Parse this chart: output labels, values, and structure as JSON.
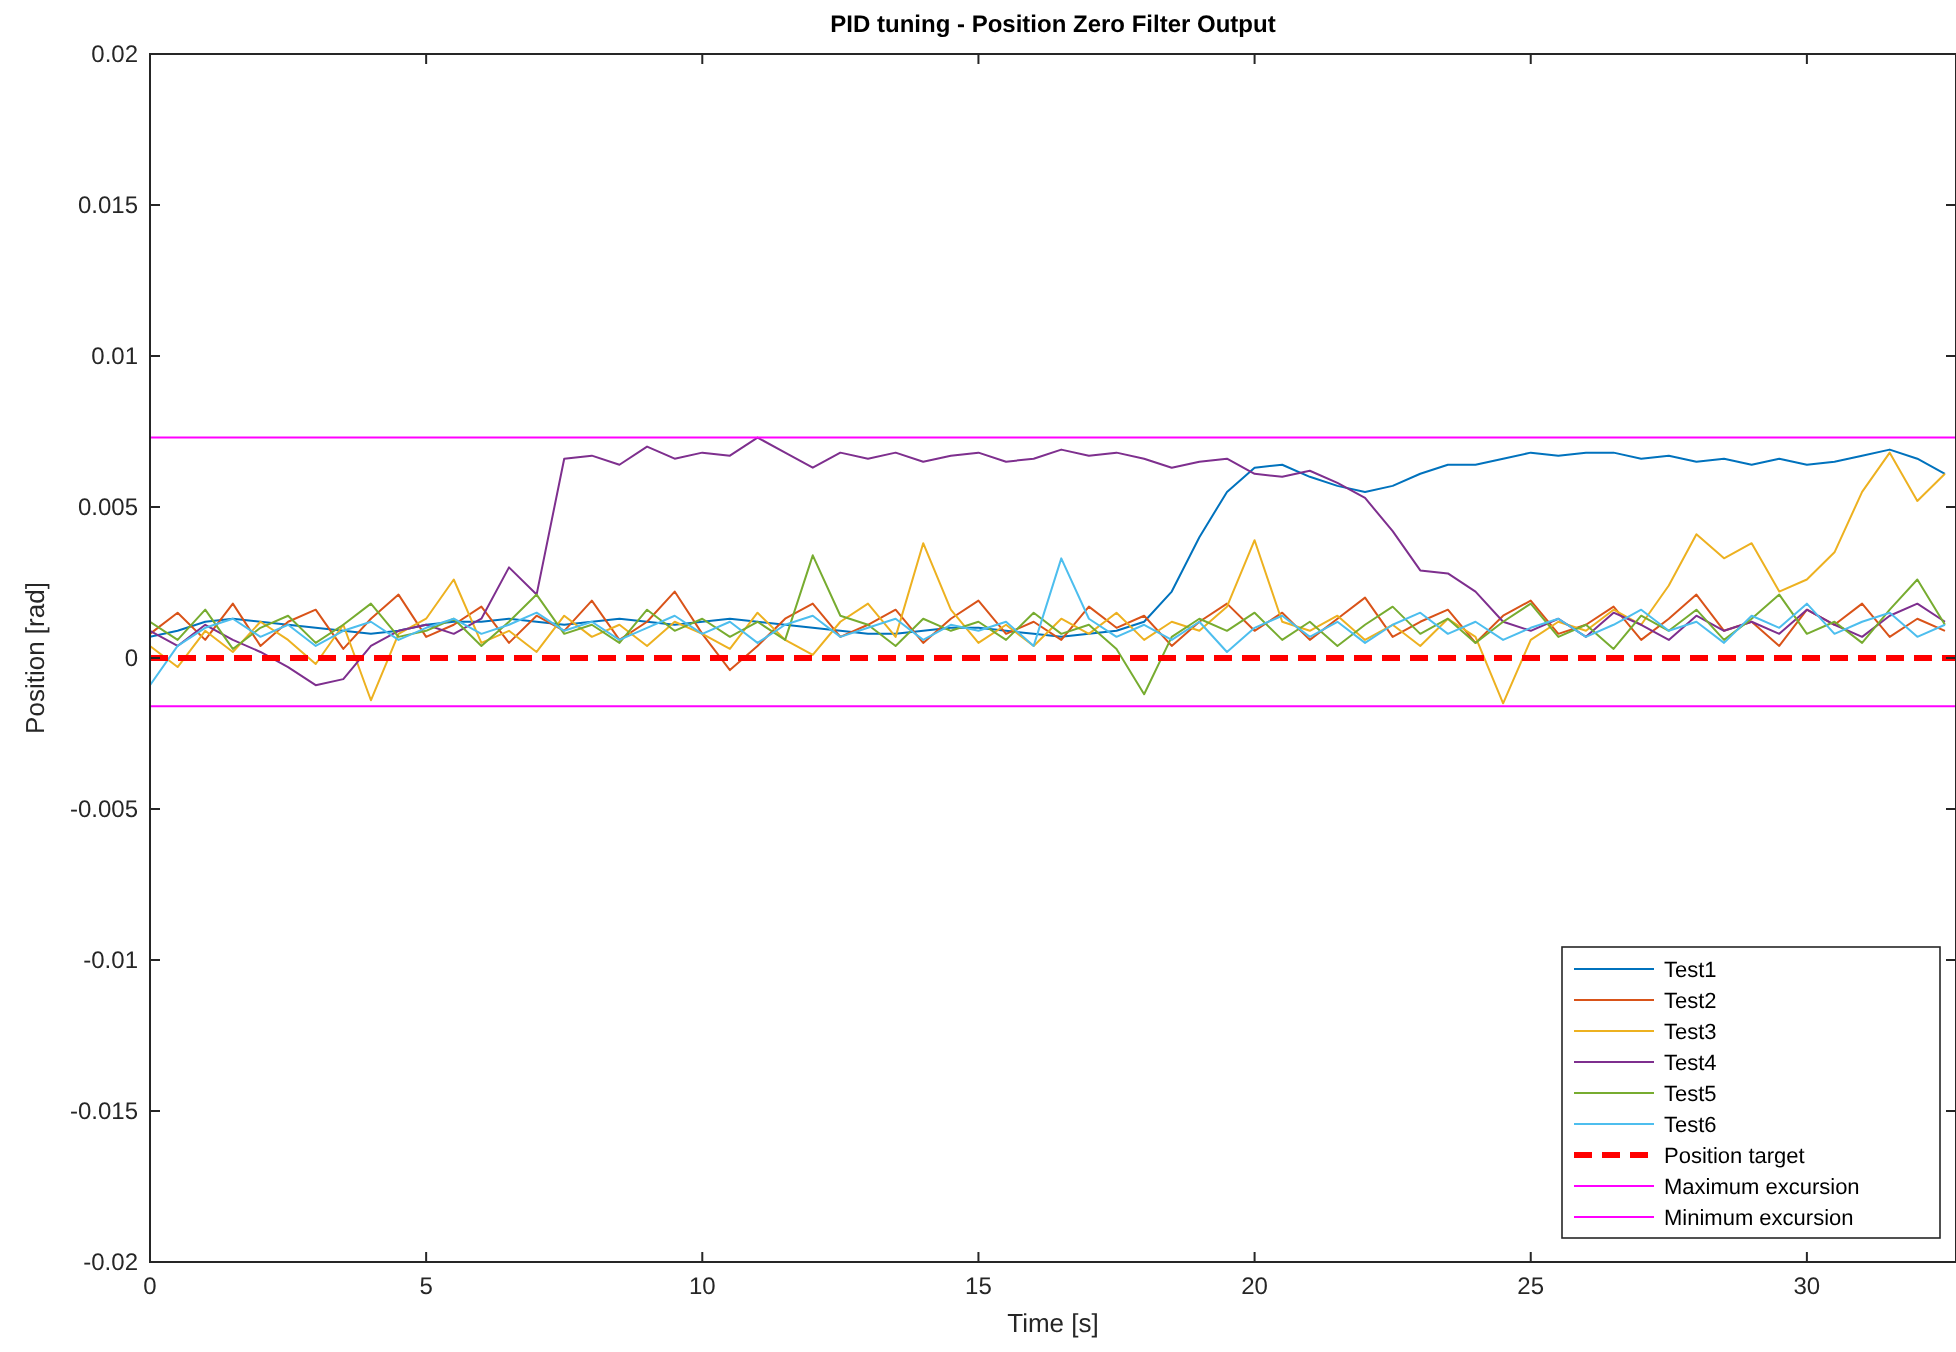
{
  "chart_data": {
    "type": "line",
    "title": "PID tuning - Position Zero Filter Output",
    "xlabel": "Time  [s]",
    "ylabel": "Position [rad]",
    "xlim": [
      0,
      32.7
    ],
    "xticks": [
      0,
      5,
      10,
      15,
      20,
      25,
      30
    ],
    "ylim": [
      -0.02,
      0.02
    ],
    "yticks": [
      -0.02,
      -0.015,
      -0.01,
      -0.005,
      0,
      0.005,
      0.01,
      0.015,
      0.02
    ],
    "grid": false,
    "legend": "bottom right",
    "line_style": "solid",
    "marker": "none",
    "x": [
      0,
      0.5,
      1,
      1.5,
      2,
      2.5,
      3,
      3.5,
      4,
      4.5,
      5,
      5.5,
      6,
      6.5,
      7,
      7.5,
      8,
      8.5,
      9,
      9.5,
      10,
      10.5,
      11,
      11.5,
      12,
      12.5,
      13,
      13.5,
      14,
      14.5,
      15,
      15.5,
      16,
      16.5,
      17,
      17.5,
      18,
      18.5,
      19,
      19.5,
      20,
      20.5,
      21,
      21.5,
      22,
      22.5,
      23,
      23.5,
      24,
      24.5,
      25,
      25.5,
      26,
      26.5,
      27,
      27.5,
      28,
      28.5,
      29,
      29.5,
      30,
      30.5,
      31,
      31.5,
      32,
      32.5
    ],
    "series": [
      {
        "name": "Test1",
        "color": "#0072bd",
        "values": [
          0.0007,
          0.0009,
          0.0012,
          0.0013,
          0.0012,
          0.0011,
          0.001,
          0.0009,
          0.0008,
          0.0009,
          0.0011,
          0.0012,
          0.0012,
          0.0013,
          0.0012,
          0.0011,
          0.0012,
          0.0013,
          0.0012,
          0.0011,
          0.0012,
          0.0013,
          0.0012,
          0.0011,
          0.001,
          0.0009,
          0.0008,
          0.0008,
          0.0009,
          0.001,
          0.001,
          0.0009,
          0.0008,
          0.0007,
          0.0008,
          0.0009,
          0.0012,
          0.0022,
          0.004,
          0.0055,
          0.0063,
          0.0064,
          0.006,
          0.0057,
          0.0055,
          0.0057,
          0.0061,
          0.0064,
          0.0064,
          0.0066,
          0.0068,
          0.0067,
          0.0068,
          0.0068,
          0.0066,
          0.0067,
          0.0065,
          0.0066,
          0.0064,
          0.0066,
          0.0064,
          0.0065,
          0.0067,
          0.0069,
          0.0066,
          0.0061
        ]
      },
      {
        "name": "Test2",
        "color": "#d95319",
        "values": [
          0.0008,
          0.0015,
          0.0006,
          0.0018,
          0.0004,
          0.0012,
          0.0016,
          0.0003,
          0.0013,
          0.0021,
          0.0007,
          0.0011,
          0.0017,
          0.0005,
          0.0014,
          0.0009,
          0.0019,
          0.0006,
          0.0012,
          0.0022,
          0.0008,
          -0.0004,
          0.0004,
          0.0013,
          0.0018,
          0.0007,
          0.0011,
          0.0016,
          0.0005,
          0.0013,
          0.0019,
          0.0008,
          0.0012,
          0.0006,
          0.0017,
          0.001,
          0.0014,
          0.0004,
          0.0012,
          0.0018,
          0.0009,
          0.0015,
          0.0006,
          0.0013,
          0.002,
          0.0007,
          0.0012,
          0.0016,
          0.0005,
          0.0014,
          0.0019,
          0.0008,
          0.0011,
          0.0017,
          0.0006,
          0.0013,
          0.0021,
          0.0009,
          0.0012,
          0.0004,
          0.0016,
          0.0011,
          0.0018,
          0.0007,
          0.0013,
          0.0009
        ]
      },
      {
        "name": "Test3",
        "color": "#edb120",
        "values": [
          0.0004,
          -0.0003,
          0.0009,
          0.0002,
          0.0012,
          0.0006,
          -0.0002,
          0.0011,
          -0.0014,
          0.0008,
          0.0013,
          0.0026,
          0.0005,
          0.0009,
          0.0002,
          0.0014,
          0.0007,
          0.0011,
          0.0004,
          0.0012,
          0.0008,
          0.0003,
          0.0015,
          0.0006,
          0.0001,
          0.0012,
          0.0018,
          0.0007,
          0.0038,
          0.0016,
          0.0005,
          0.0011,
          0.0004,
          0.0013,
          0.0008,
          0.0015,
          0.0006,
          0.0012,
          0.0009,
          0.0017,
          0.0039,
          0.0012,
          0.0009,
          0.0014,
          0.0006,
          0.0011,
          0.0004,
          0.0013,
          0.0007,
          -0.0015,
          0.0006,
          0.0012,
          0.0009,
          0.0016,
          0.0011,
          0.0024,
          0.0041,
          0.0033,
          0.0038,
          0.0022,
          0.0026,
          0.0035,
          0.0055,
          0.0068,
          0.0052,
          0.0061
        ]
      },
      {
        "name": "Test4",
        "color": "#7e2f8e",
        "values": [
          0.0009,
          0.0004,
          0.0011,
          0.0006,
          0.0002,
          -0.0003,
          -0.0009,
          -0.0007,
          0.0004,
          0.0009,
          0.0011,
          0.0008,
          0.0013,
          0.003,
          0.0021,
          0.0066,
          0.0067,
          0.0064,
          0.007,
          0.0066,
          0.0068,
          0.0067,
          0.0073,
          0.0068,
          0.0063,
          0.0068,
          0.0066,
          0.0068,
          0.0065,
          0.0067,
          0.0068,
          0.0065,
          0.0066,
          0.0069,
          0.0067,
          0.0068,
          0.0066,
          0.0063,
          0.0065,
          0.0066,
          0.0061,
          0.006,
          0.0062,
          0.0058,
          0.0053,
          0.0042,
          0.0029,
          0.0028,
          0.0022,
          0.0012,
          0.0009,
          0.0013,
          0.0007,
          0.0015,
          0.0011,
          0.0006,
          0.0014,
          0.0009,
          0.0012,
          0.0008,
          0.0016,
          0.0011,
          0.0007,
          0.0014,
          0.0018,
          0.0012
        ]
      },
      {
        "name": "Test5",
        "color": "#77ac30",
        "values": [
          0.0012,
          0.0006,
          0.0016,
          0.0003,
          0.001,
          0.0014,
          0.0005,
          0.0011,
          0.0018,
          0.0007,
          0.0009,
          0.0013,
          0.0004,
          0.0012,
          0.0021,
          0.0008,
          0.0011,
          0.0005,
          0.0016,
          0.0009,
          0.0013,
          0.0007,
          0.0012,
          0.0006,
          0.0034,
          0.0014,
          0.0011,
          0.0004,
          0.0013,
          0.0009,
          0.0012,
          0.0006,
          0.0015,
          0.0008,
          0.0011,
          0.0003,
          -0.0012,
          0.0007,
          0.0013,
          0.0009,
          0.0015,
          0.0006,
          0.0012,
          0.0004,
          0.0011,
          0.0017,
          0.0008,
          0.0013,
          0.0005,
          0.0012,
          0.0018,
          0.0007,
          0.0011,
          0.0003,
          0.0014,
          0.0009,
          0.0016,
          0.0006,
          0.0013,
          0.0021,
          0.0008,
          0.0012,
          0.0005,
          0.0016,
          0.0026,
          0.0011
        ]
      },
      {
        "name": "Test6",
        "color": "#4dbeee",
        "values": [
          -0.0009,
          0.0004,
          0.001,
          0.0013,
          0.0007,
          0.0011,
          0.0004,
          0.0009,
          0.0012,
          0.0006,
          0.001,
          0.0013,
          0.0008,
          0.0011,
          0.0015,
          0.0009,
          0.0012,
          0.0006,
          0.001,
          0.0014,
          0.0008,
          0.0012,
          0.0005,
          0.0011,
          0.0014,
          0.0007,
          0.001,
          0.0013,
          0.0006,
          0.0011,
          0.0009,
          0.0012,
          0.0004,
          0.0033,
          0.0013,
          0.0007,
          0.0011,
          0.0006,
          0.0012,
          0.0002,
          0.001,
          0.0014,
          0.0007,
          0.0012,
          0.0005,
          0.0011,
          0.0015,
          0.0008,
          0.0012,
          0.0006,
          0.001,
          0.0013,
          0.0007,
          0.0011,
          0.0016,
          0.0009,
          0.0012,
          0.0005,
          0.0014,
          0.001,
          0.0018,
          0.0008,
          0.0012,
          0.0015,
          0.0007,
          0.0011
        ]
      }
    ],
    "ref_lines": [
      {
        "axis": "y",
        "value": 0,
        "label": "Position target",
        "color": "#ff0000",
        "line_style": "dashed"
      },
      {
        "axis": "y",
        "value": 0.0073,
        "label": "Maximum excursion",
        "color": "#ff00ff",
        "line_style": "solid"
      },
      {
        "axis": "y",
        "value": -0.0016,
        "label": "Minimum excursion",
        "color": "#ff00ff",
        "line_style": "solid"
      }
    ]
  }
}
